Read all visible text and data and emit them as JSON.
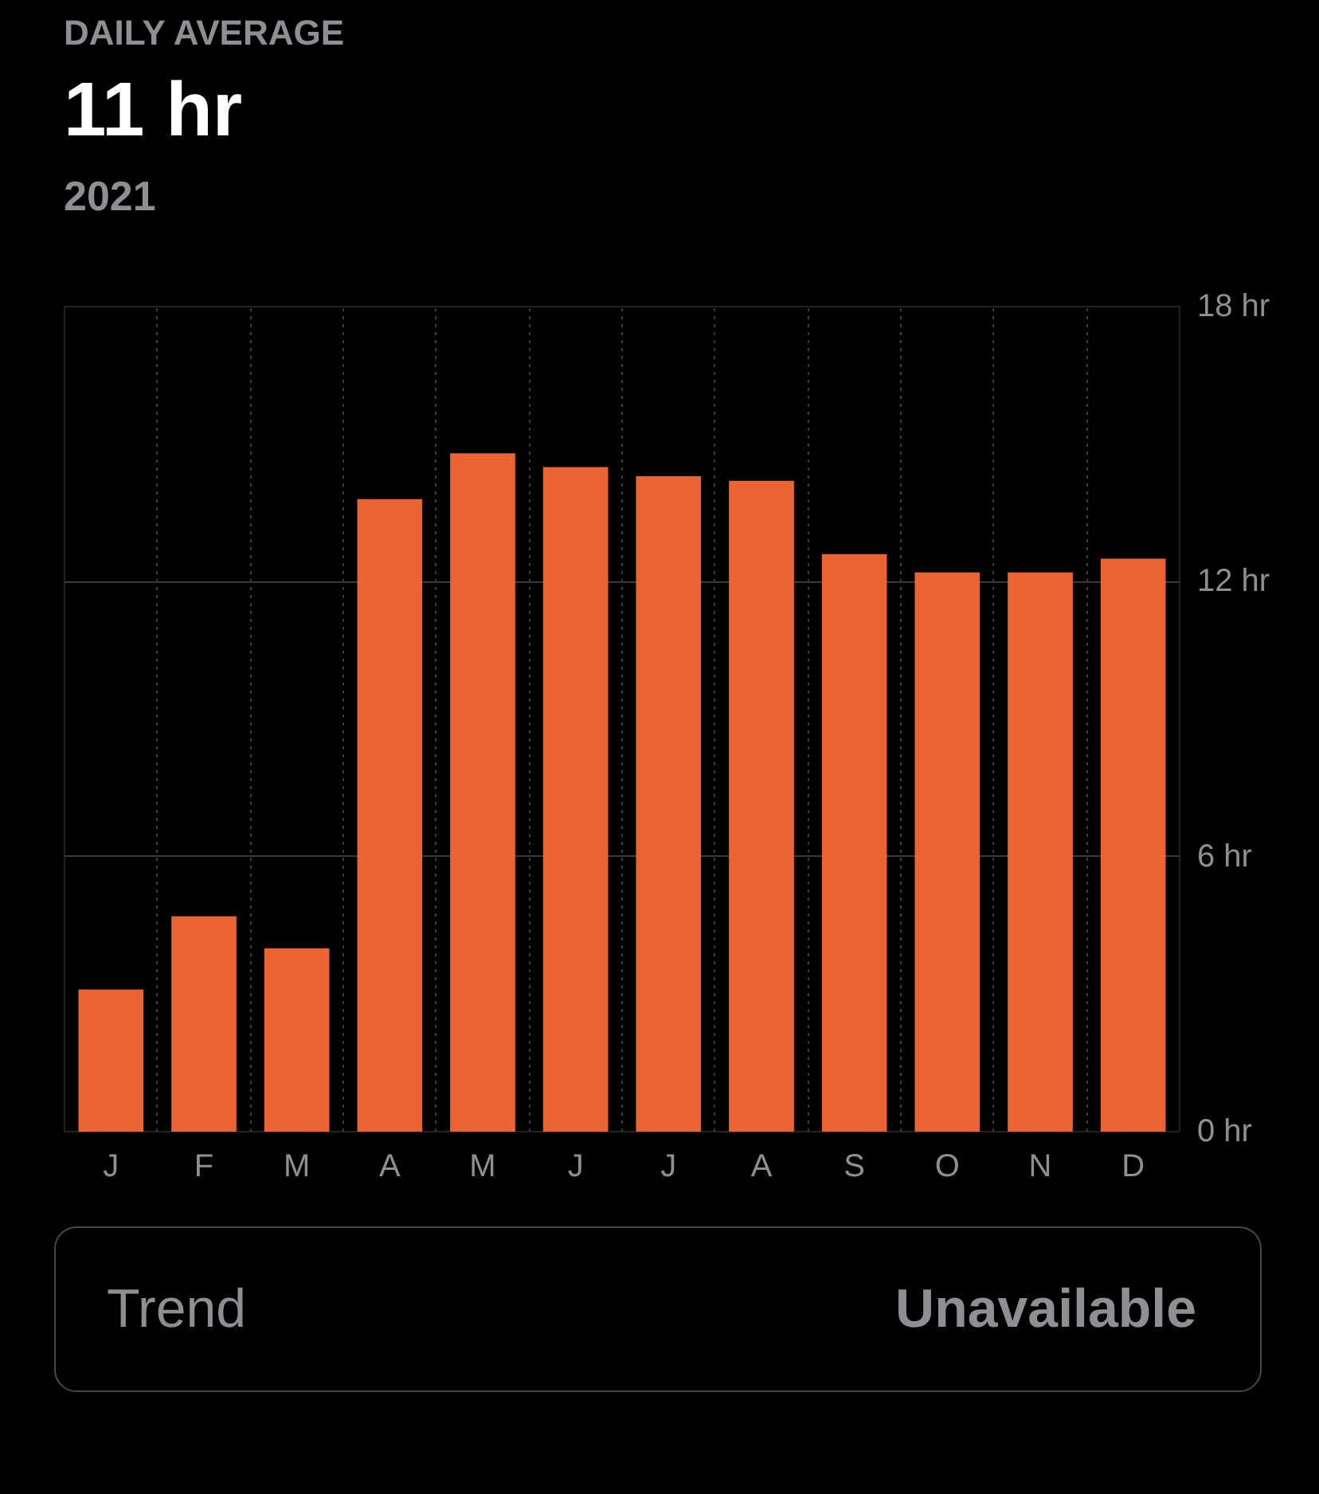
{
  "chart_data": {
    "type": "bar",
    "title": "DAILY AVERAGE",
    "subtitle": "11 hr",
    "annotations": [
      "2021",
      "Trend",
      "Unavailable"
    ],
    "categories": [
      "J",
      "F",
      "M",
      "A",
      "M",
      "J",
      "J",
      "A",
      "S",
      "O",
      "N",
      "D"
    ],
    "series": [
      {
        "color": "#eb6534",
        "values": [
          3.1,
          4.7,
          4.0,
          13.8,
          14.8,
          14.5,
          14.3,
          14.2,
          12.6,
          12.2,
          12.2,
          12.5
        ]
      }
    ],
    "ylim": [
      0,
      18
    ],
    "yticks": [
      {
        "value": 0,
        "label": "0 hr"
      },
      {
        "value": 6,
        "label": "6 hr"
      },
      {
        "value": 12,
        "label": "12 hr"
      },
      {
        "value": 18,
        "label": "18 hr"
      }
    ],
    "grid": true
  }
}
